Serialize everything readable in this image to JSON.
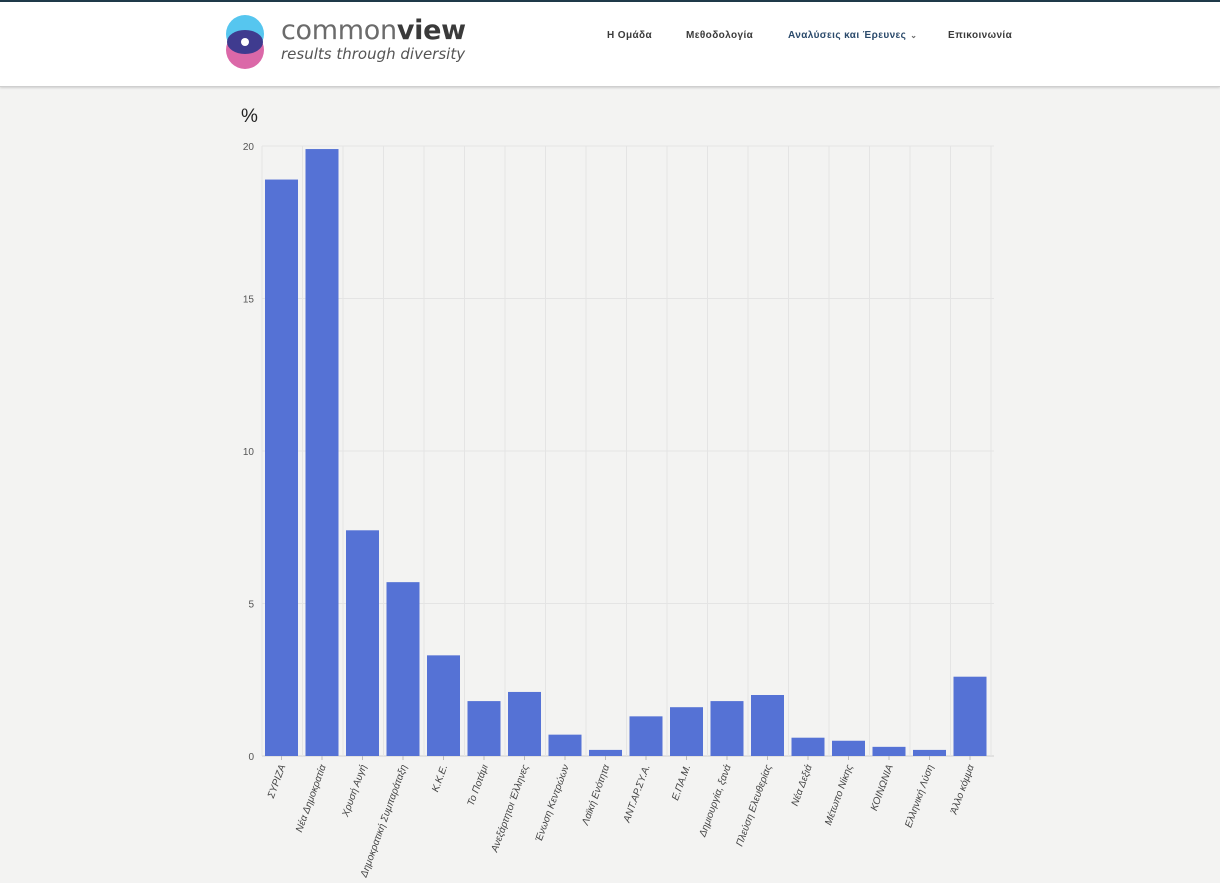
{
  "site": {
    "brand_light": "common",
    "brand_bold": "view",
    "tagline": "results through diversity",
    "logo_colors": {
      "top": "#56c6ef",
      "bottom": "#db68a8",
      "eye": "#3f3b8f"
    }
  },
  "nav": {
    "items": [
      {
        "label": "Η Ομάδα"
      },
      {
        "label": "Μεθοδολογία"
      },
      {
        "label": "Αναλύσεις και Έρευνες",
        "chevron": "chevron-down-icon"
      },
      {
        "label": "Επικοινωνία"
      }
    ]
  },
  "chart_data": {
    "type": "bar",
    "ylabel": "%",
    "ylim": [
      0,
      20
    ],
    "yticks": [
      0,
      5,
      10,
      15,
      20
    ],
    "grid": true,
    "bar_color": "#5572d5",
    "categories": [
      "ΣΥΡΙΖΑ",
      "Νέα Δημοκρατία",
      "Χρυσή Αυγή",
      "Δημοκρατική Συμπαράταξη",
      "Κ.Κ.Ε.",
      "Το Ποτάμι",
      "Ανεξάρτητοι Έλληνες",
      "Ένωση Κεντρώων",
      "Λαϊκή Ενότητα",
      "ΑΝΤ.ΑΡ.ΣΥ.Α.",
      "Ε.ΠΑ.Μ.",
      "Δημιουργία, ξανά",
      "Πλεύση Ελευθερίας",
      "Νέα Δεξιά",
      "Μέτωπο Νίκης",
      "ΚΟΙΝΩΝΙΑ",
      "Ελληνική Λύση",
      "Άλλο κόμμα"
    ],
    "values": [
      18.9,
      19.9,
      7.4,
      5.7,
      3.3,
      1.8,
      2.1,
      0.7,
      0.2,
      1.3,
      1.6,
      1.8,
      2.0,
      0.6,
      0.5,
      0.3,
      0.2,
      2.6
    ]
  }
}
